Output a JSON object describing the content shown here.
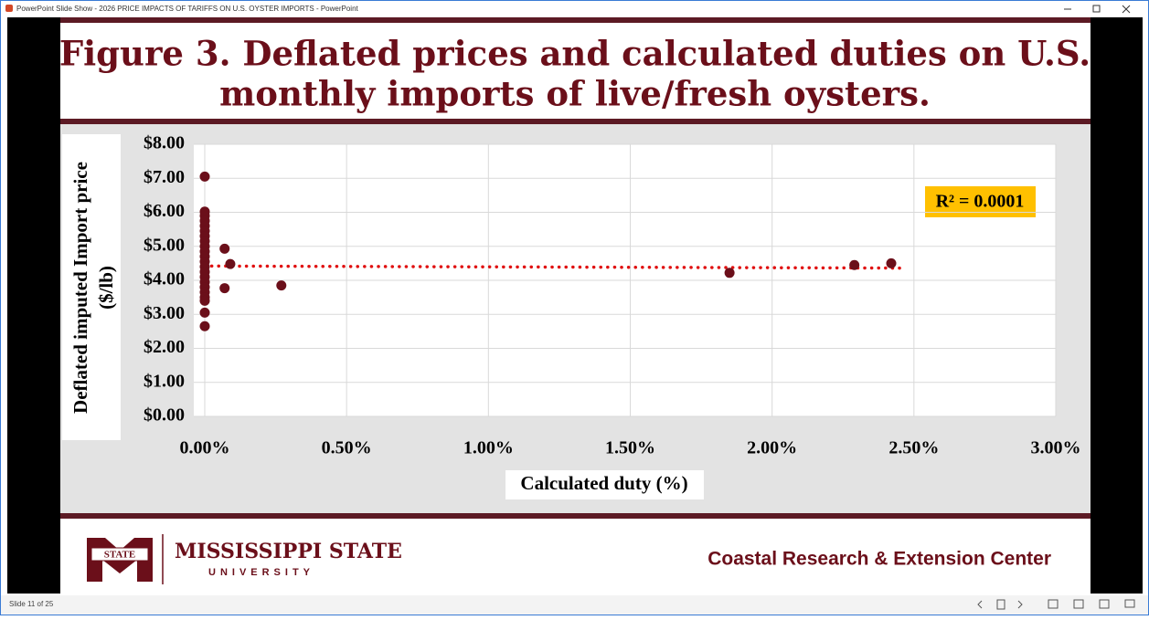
{
  "window": {
    "title": "PowerPoint Slide Show  -  2026 PRICE IMPACTS OF TARIFFS ON U.S. OYSTER IMPORTS  -  PowerPoint"
  },
  "slide": {
    "title_lines": [
      "Figure 3. Deflated prices and calculated duties on U.S.",
      "monthly imports of live/fresh oysters."
    ],
    "footer": {
      "logo_text": "STATE",
      "university_name": "MISSISSIPPI STATE",
      "university_sub": "UNIVERSITY",
      "center": "Coastal Research & Extension Center"
    }
  },
  "chart_data": {
    "type": "scatter",
    "x_label": "Calculated duty (%)",
    "y_label_lines": [
      "Deflated imputed Import price",
      "($/lb)"
    ],
    "annotation": "R² = 0.0001",
    "color": "#6b0f1a",
    "x": [
      0,
      0,
      0,
      0,
      0,
      0,
      0,
      0,
      0,
      0,
      0,
      0,
      0,
      0,
      0,
      0,
      0,
      0,
      0,
      0,
      0,
      0,
      0.07,
      0.09,
      0.07,
      0.27,
      1.85,
      2.29,
      2.42
    ],
    "values": [
      7.05,
      6.02,
      5.9,
      5.75,
      5.6,
      5.45,
      5.3,
      5.15,
      5.0,
      4.85,
      4.7,
      4.55,
      4.4,
      4.25,
      4.1,
      3.95,
      3.8,
      3.65,
      3.5,
      3.4,
      3.05,
      2.65,
      4.93,
      4.48,
      3.77,
      3.85,
      4.22,
      4.45,
      4.5
    ],
    "trendline": {
      "color": "#e01010",
      "x": [
        0,
        2.45
      ],
      "values": [
        4.42,
        4.36
      ]
    },
    "xlim": [
      0,
      3
    ],
    "ylim": [
      0,
      8
    ],
    "xticks": [
      {
        "value": 0,
        "label": "0.00%"
      },
      {
        "value": 0.5,
        "label": "0.50%"
      },
      {
        "value": 1,
        "label": "1.00%"
      },
      {
        "value": 1.5,
        "label": "1.50%"
      },
      {
        "value": 2,
        "label": "2.00%"
      },
      {
        "value": 2.5,
        "label": "2.50%"
      },
      {
        "value": 3,
        "label": "3.00%"
      }
    ],
    "yticks": [
      {
        "value": 0,
        "label": "$0.00"
      },
      {
        "value": 1,
        "label": "$1.00"
      },
      {
        "value": 2,
        "label": "$2.00"
      },
      {
        "value": 3,
        "label": "$3.00"
      },
      {
        "value": 4,
        "label": "$4.00"
      },
      {
        "value": 5,
        "label": "$5.00"
      },
      {
        "value": 6,
        "label": "$6.00"
      },
      {
        "value": 7,
        "label": "$7.00"
      },
      {
        "value": 8,
        "label": "$8.00"
      }
    ],
    "grid": true
  },
  "status": {
    "slide_counter": "Slide 11 of 25"
  }
}
